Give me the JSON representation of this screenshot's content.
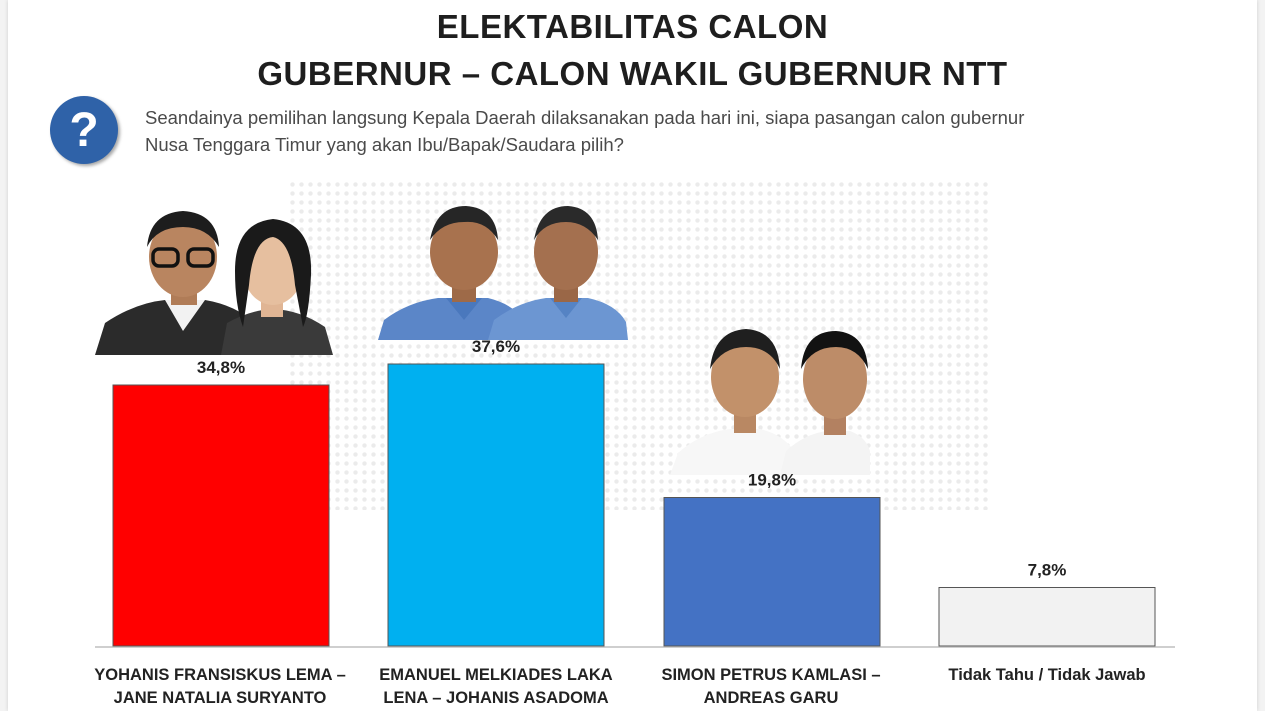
{
  "title_line1": "ELEKTABILITAS CALON",
  "title_line2": "GUBERNUR – CALON WAKIL GUBERNUR NTT",
  "question_icon": "?",
  "question_line1": "Seandainya pemilihan langsung Kepala Daerah dilaksanakan pada hari ini, siapa pasangan calon gubernur",
  "question_line2": "Nusa Tenggara Timur  yang akan Ibu/Bapak/Saudara pilih?",
  "chart_data": {
    "type": "bar",
    "categories": [
      [
        "YOHANIS FRANSISKUS LEMA –",
        "JANE NATALIA SURYANTO"
      ],
      [
        "EMANUEL MELKIADES LAKA",
        "LENA – JOHANIS ASADOMA"
      ],
      [
        "SIMON PETRUS KAMLASI –",
        "ANDREAS GARU"
      ],
      [
        "Tidak Tahu / Tidak Jawab"
      ]
    ],
    "values": [
      34.8,
      37.6,
      19.8,
      7.8
    ],
    "value_labels": [
      "34,8%",
      "37,6%",
      "19,8%",
      "7,8%"
    ],
    "colors": [
      "#ff0000",
      "#00b0f0",
      "#4472c4",
      "#f2f2f2"
    ],
    "ylim": [
      0,
      40
    ],
    "title": "ELEKTABILITAS CALON GUBERNUR – CALON WAKIL GUBERNUR NTT",
    "xlabel": "",
    "ylabel": "",
    "grid": false
  }
}
